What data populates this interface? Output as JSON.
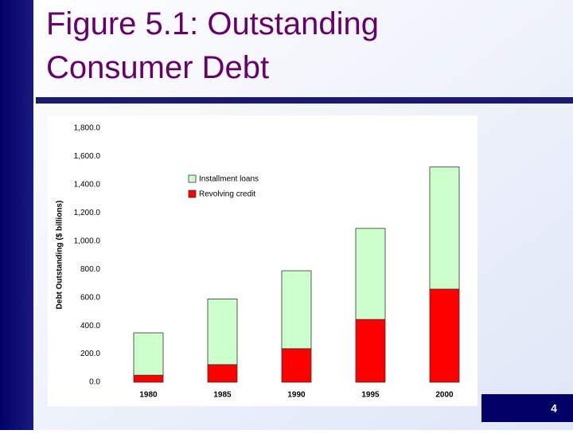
{
  "chart_data": {
    "type": "stacked-bar",
    "title": "Figure 5.1:  Outstanding Consumer Debt",
    "y_label": "Debt Outstanding ($ billions)",
    "categories": [
      "1980",
      "1985",
      "1990",
      "1995",
      "2000"
    ],
    "series": [
      {
        "name": "Revolving credit",
        "color": "#ff0000",
        "values": [
          50,
          125,
          238,
          445,
          660
        ]
      },
      {
        "name": "Installment loans",
        "color": "#ccffcc",
        "values": [
          300,
          465,
          552,
          645,
          865
        ]
      }
    ],
    "ylim": [
      0,
      1800
    ],
    "yticks": [
      {
        "value": 0,
        "label": "0.0"
      },
      {
        "value": 200,
        "label": "200.0"
      },
      {
        "value": 400,
        "label": "400.0"
      },
      {
        "value": 600,
        "label": "600.0"
      },
      {
        "value": 800,
        "label": "800.0"
      },
      {
        "value": 1000,
        "label": "1,000.0"
      },
      {
        "value": 1200,
        "label": "1,200.0"
      },
      {
        "value": 1400,
        "label": "1,400.0"
      },
      {
        "value": 1600,
        "label": "1,600.0"
      },
      {
        "value": 1800,
        "label": "1,800.0"
      }
    ],
    "grid": false
  },
  "page_number": "4"
}
